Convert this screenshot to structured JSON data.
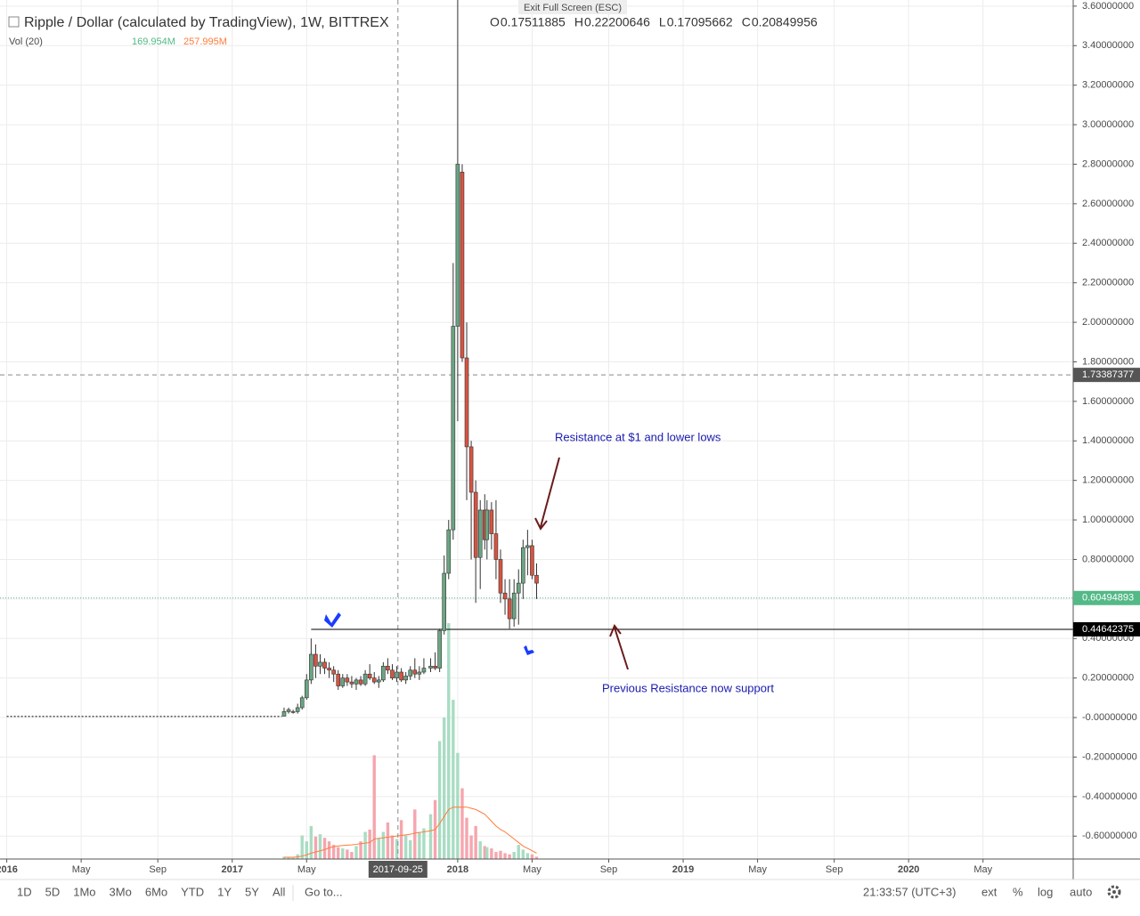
{
  "chart_data": {
    "type": "candlestick",
    "title": "Ripple / Dollar (calculated by TradingView), 1W, BITTREX",
    "ohlc_header": [
      {
        "label": "O",
        "value": 0.17511885
      },
      {
        "label": "H",
        "value": 0.22200646
      },
      {
        "label": "L",
        "value": 0.17095662
      },
      {
        "label": "C",
        "value": 0.20849956
      }
    ],
    "volume_legend": {
      "label": "Vol (20)",
      "volume": "169.954M",
      "volume_ma": "257.995M"
    },
    "fullscreen_hint": "Exit Full Screen (ESC)",
    "x": [
      2017.23,
      2017.25,
      2017.27,
      2017.29,
      2017.31,
      2017.33,
      2017.35,
      2017.37,
      2017.39,
      2017.41,
      2017.43,
      2017.45,
      2017.47,
      2017.49,
      2017.51,
      2017.53,
      2017.55,
      2017.57,
      2017.59,
      2017.61,
      2017.63,
      2017.65,
      2017.67,
      2017.69,
      2017.71,
      2017.73,
      2017.75,
      2017.77,
      2017.79,
      2017.81,
      2017.83,
      2017.85,
      2017.88,
      2017.9,
      2017.92,
      2017.94,
      2017.96,
      2017.98,
      2018.0,
      2018.02,
      2018.04,
      2018.06,
      2018.08,
      2018.1,
      2018.12,
      2018.13,
      2018.15,
      2018.17,
      2018.19,
      2018.21,
      2018.23,
      2018.25,
      2018.27,
      2018.29,
      2018.31,
      2018.33,
      2018.35
    ],
    "open": [
      0.007,
      0.03,
      0.03,
      0.03,
      0.05,
      0.1,
      0.19,
      0.32,
      0.26,
      0.28,
      0.25,
      0.24,
      0.22,
      0.16,
      0.2,
      0.18,
      0.17,
      0.19,
      0.17,
      0.22,
      0.2,
      0.18,
      0.19,
      0.26,
      0.24,
      0.2,
      0.23,
      0.19,
      0.21,
      0.24,
      0.22,
      0.23,
      0.25,
      0.26,
      0.25,
      0.44,
      0.73,
      0.95,
      1.98,
      2.76,
      1.82,
      1.37,
      1.14,
      0.81,
      1.05,
      0.9,
      1.05,
      0.93,
      0.8,
      0.63,
      0.6,
      0.5,
      0.63,
      0.68,
      0.86,
      0.87,
      0.72
    ],
    "high": [
      0.05,
      0.05,
      0.04,
      0.07,
      0.11,
      0.22,
      0.4,
      0.37,
      0.32,
      0.3,
      0.28,
      0.26,
      0.24,
      0.22,
      0.22,
      0.21,
      0.2,
      0.21,
      0.24,
      0.27,
      0.23,
      0.21,
      0.28,
      0.3,
      0.27,
      0.26,
      0.25,
      0.23,
      0.26,
      0.3,
      0.26,
      0.3,
      0.3,
      0.33,
      0.45,
      0.82,
      1.0,
      2.3,
      3.84,
      2.8,
      2.0,
      1.4,
      1.2,
      1.1,
      1.13,
      1.1,
      1.09,
      1.1,
      0.85,
      0.7,
      0.7,
      0.7,
      0.75,
      0.9,
      0.95,
      0.9,
      0.78
    ],
    "low": [
      0.006,
      0.02,
      0.02,
      0.02,
      0.04,
      0.09,
      0.17,
      0.2,
      0.22,
      0.22,
      0.2,
      0.18,
      0.14,
      0.15,
      0.16,
      0.15,
      0.14,
      0.16,
      0.16,
      0.19,
      0.17,
      0.15,
      0.18,
      0.22,
      0.19,
      0.18,
      0.18,
      0.17,
      0.19,
      0.2,
      0.19,
      0.22,
      0.23,
      0.24,
      0.23,
      0.42,
      0.7,
      0.9,
      1.5,
      1.8,
      1.1,
      0.8,
      0.58,
      0.65,
      0.85,
      0.8,
      0.85,
      0.7,
      0.58,
      0.52,
      0.45,
      0.46,
      0.47,
      0.6,
      0.72,
      0.7,
      0.6
    ],
    "close": [
      0.03,
      0.04,
      0.03,
      0.05,
      0.1,
      0.19,
      0.32,
      0.26,
      0.28,
      0.25,
      0.24,
      0.22,
      0.16,
      0.2,
      0.18,
      0.17,
      0.19,
      0.17,
      0.22,
      0.2,
      0.18,
      0.19,
      0.26,
      0.24,
      0.2,
      0.23,
      0.19,
      0.21,
      0.24,
      0.22,
      0.23,
      0.25,
      0.26,
      0.25,
      0.44,
      0.73,
      0.95,
      1.98,
      2.8,
      1.82,
      1.37,
      1.14,
      0.81,
      1.05,
      0.9,
      1.05,
      0.93,
      0.8,
      0.63,
      0.6,
      0.5,
      0.63,
      0.68,
      0.86,
      0.87,
      0.72,
      0.68
    ],
    "volume": [
      20,
      15,
      10,
      40,
      200,
      150,
      280,
      190,
      210,
      180,
      150,
      120,
      100,
      90,
      80,
      60,
      110,
      150,
      230,
      250,
      880,
      180,
      230,
      310,
      200,
      170,
      330,
      200,
      160,
      420,
      230,
      260,
      380,
      500,
      1000,
      1200,
      2000,
      1350,
      900,
      600,
      350,
      200,
      280,
      150,
      110,
      100,
      90,
      60,
      70,
      50,
      40,
      60,
      120,
      80,
      50,
      40,
      20
    ],
    "volume_ma": [
      15,
      15,
      15,
      18,
      25,
      35,
      50,
      60,
      70,
      80,
      95,
      105,
      110,
      115,
      118,
      120,
      125,
      130,
      135,
      140,
      170,
      175,
      180,
      185,
      190,
      195,
      200,
      205,
      210,
      220,
      225,
      230,
      240,
      250,
      300,
      360,
      420,
      440,
      440,
      440,
      440,
      430,
      420,
      400,
      380,
      360,
      320,
      280,
      250,
      230,
      200,
      170,
      140,
      110,
      90,
      70,
      50
    ],
    "baseline": {
      "x": [
        2016.0,
        2017.22
      ],
      "values": [
        0.006,
        0.006
      ]
    },
    "colors": {
      "up": "#6ba583",
      "down": "#d75442",
      "wick": "#333333",
      "volume_up": "#a9dcc3",
      "volume_down": "#f5a6ae",
      "volume_ma": "#ff7b3a"
    },
    "xlim": [
      2015.97,
      2020.73
    ],
    "ylim": [
      -0.716,
      3.631
    ],
    "xticks": [
      {
        "value": 2016.0,
        "label": "2016"
      },
      {
        "value": 2016.33,
        "label": "May"
      },
      {
        "value": 2016.67,
        "label": "Sep"
      },
      {
        "value": 2017.0,
        "label": "2017"
      },
      {
        "value": 2017.33,
        "label": "May"
      },
      {
        "value": 2018.0,
        "label": "2018"
      },
      {
        "value": 2018.33,
        "label": "May"
      },
      {
        "value": 2018.67,
        "label": "Sep"
      },
      {
        "value": 2019.0,
        "label": "2019"
      },
      {
        "value": 2019.33,
        "label": "May"
      },
      {
        "value": 2019.67,
        "label": "Sep"
      },
      {
        "value": 2020.0,
        "label": "2020"
      },
      {
        "value": 2020.33,
        "label": "May"
      }
    ],
    "yticks": [
      {
        "value": 3.6,
        "label": "3.60000000"
      },
      {
        "value": 3.4,
        "label": "3.40000000"
      },
      {
        "value": 3.2,
        "label": "3.20000000"
      },
      {
        "value": 3.0,
        "label": "3.00000000"
      },
      {
        "value": 2.8,
        "label": "2.80000000"
      },
      {
        "value": 2.6,
        "label": "2.60000000"
      },
      {
        "value": 2.4,
        "label": "2.40000000"
      },
      {
        "value": 2.2,
        "label": "2.20000000"
      },
      {
        "value": 2.0,
        "label": "2.00000000"
      },
      {
        "value": 1.8,
        "label": "1.80000000"
      },
      {
        "value": 1.6,
        "label": "1.60000000"
      },
      {
        "value": 1.4,
        "label": "1.40000000"
      },
      {
        "value": 1.2,
        "label": "1.20000000"
      },
      {
        "value": 1.0,
        "label": "1.00000000"
      },
      {
        "value": 0.8,
        "label": "0.80000000"
      },
      {
        "value": 0.6,
        "label": "0.60000000"
      },
      {
        "value": 0.4,
        "label": "0.40000000"
      },
      {
        "value": 0.2,
        "label": "0.20000000"
      },
      {
        "value": 0,
        "label": "-0.00000000"
      },
      {
        "value": -0.2,
        "label": "-0.20000000"
      },
      {
        "value": -0.4,
        "label": "-0.40000000"
      },
      {
        "value": -0.6,
        "label": "-0.60000000"
      }
    ],
    "grid": true,
    "crosshair": {
      "x": 2017.735,
      "x_label": "2017-09-25",
      "y": 1.73387377
    },
    "last_price": 0.60494893,
    "support_level": 0.44642375,
    "annotations": [
      "Resistance at $1 and lower lows",
      "Previous Resistance now support"
    ]
  },
  "toolbar": {
    "ranges": [
      "1D",
      "5D",
      "1Mo",
      "3Mo",
      "6Mo",
      "YTD",
      "1Y",
      "5Y",
      "All"
    ],
    "goto": "Go to...",
    "clock": "21:33:57 (UTC+3)",
    "options": [
      "ext",
      "%",
      "log",
      "auto"
    ]
  }
}
